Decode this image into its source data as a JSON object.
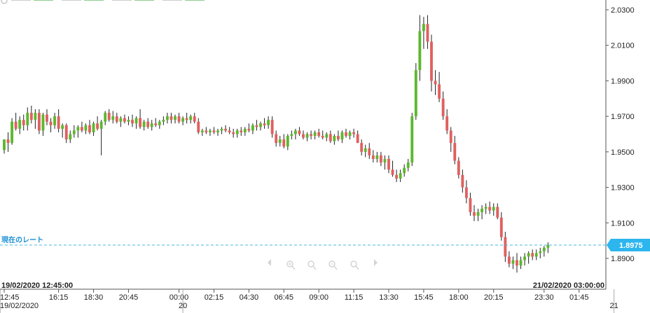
{
  "legend": {
    "items": [
      {
        "label": "",
        "value": ""
      },
      {
        "label": "",
        "value": ""
      },
      {
        "label": "",
        "value": ""
      },
      {
        "label": "",
        "value": ""
      }
    ]
  },
  "current_rate": {
    "label": "現在のレート",
    "value": "1.8975",
    "value_num": 1.8975
  },
  "range": {
    "start": "19/02/2020 12:45:00",
    "end": "21/02/2020 03:00:00"
  },
  "day_labels": [
    {
      "text": "19/02/2020",
      "x_index": 0
    },
    {
      "text": "20",
      "x_index": 46
    },
    {
      "text": "21",
      "x_index": 157
    }
  ],
  "nav_icons": [
    "arrow-left-icon",
    "zoom-in-icon",
    "zoom-reset-icon",
    "zoom-out-icon",
    "zoom-fit-icon",
    "arrow-right-icon"
  ],
  "colors": {
    "up": "#5cb82e",
    "down": "#e06060",
    "current_line": "#4ab8e0",
    "badge": "#2db6ee"
  },
  "chart_data": {
    "type": "candlestick",
    "interval_minutes": 15,
    "ylim": [
      1.88,
      2.035
    ],
    "yticks": [
      1.89,
      1.91,
      1.93,
      1.95,
      1.97,
      1.99,
      2.01,
      2.03
    ],
    "ytick_labels": [
      "1.8900",
      "1.9100",
      "1.9300",
      "1.9500",
      "1.9700",
      "1.9900",
      "2.0100",
      "2.0300"
    ],
    "xtick_labels": [
      {
        "text": "12:45",
        "index": 0
      },
      {
        "text": "16:15",
        "index": 14
      },
      {
        "text": "18:30",
        "index": 23
      },
      {
        "text": "20:45",
        "index": 32
      },
      {
        "text": "00:00",
        "index": 45
      },
      {
        "text": "02:15",
        "index": 54
      },
      {
        "text": "04:30",
        "index": 63
      },
      {
        "text": "06:45",
        "index": 72
      },
      {
        "text": "09:00",
        "index": 81
      },
      {
        "text": "11:15",
        "index": 90
      },
      {
        "text": "13:30",
        "index": 99
      },
      {
        "text": "15:45",
        "index": 108
      },
      {
        "text": "18:00",
        "index": 117
      },
      {
        "text": "20:15",
        "index": 126
      },
      {
        "text": "23:30",
        "index": 139
      },
      {
        "text": "01:45",
        "index": 148
      }
    ],
    "x_count": 155,
    "candles": [
      [
        1.951,
        1.957,
        1.949,
        1.957
      ],
      [
        1.957,
        1.961,
        1.95,
        1.955
      ],
      [
        1.955,
        1.969,
        1.954,
        1.967
      ],
      [
        1.967,
        1.972,
        1.962,
        1.963
      ],
      [
        1.963,
        1.97,
        1.96,
        1.968
      ],
      [
        1.968,
        1.971,
        1.962,
        1.965
      ],
      [
        1.965,
        1.975,
        1.962,
        1.972
      ],
      [
        1.972,
        1.976,
        1.966,
        1.968
      ],
      [
        1.968,
        1.974,
        1.963,
        1.972
      ],
      [
        1.972,
        1.974,
        1.96,
        1.962
      ],
      [
        1.962,
        1.972,
        1.959,
        1.971
      ],
      [
        1.971,
        1.974,
        1.965,
        1.967
      ],
      [
        1.967,
        1.969,
        1.961,
        1.965
      ],
      [
        1.965,
        1.972,
        1.963,
        1.97
      ],
      [
        1.97,
        1.974,
        1.961,
        1.963
      ],
      [
        1.963,
        1.966,
        1.958,
        1.965
      ],
      [
        1.965,
        1.966,
        1.955,
        1.957
      ],
      [
        1.957,
        1.962,
        1.955,
        1.96
      ],
      [
        1.96,
        1.965,
        1.958,
        1.962
      ],
      [
        1.962,
        1.965,
        1.958,
        1.964
      ],
      [
        1.964,
        1.967,
        1.961,
        1.962
      ],
      [
        1.962,
        1.966,
        1.96,
        1.965
      ],
      [
        1.965,
        1.968,
        1.96,
        1.961
      ],
      [
        1.961,
        1.967,
        1.959,
        1.966
      ],
      [
        1.966,
        1.97,
        1.962,
        1.963
      ],
      [
        1.963,
        1.968,
        1.948,
        1.967
      ],
      [
        1.967,
        1.973,
        1.965,
        1.972
      ],
      [
        1.972,
        1.974,
        1.967,
        1.968
      ],
      [
        1.968,
        1.973,
        1.966,
        1.97
      ],
      [
        1.97,
        1.972,
        1.966,
        1.967
      ],
      [
        1.967,
        1.97,
        1.964,
        1.969
      ],
      [
        1.969,
        1.971,
        1.966,
        1.967
      ],
      [
        1.967,
        1.97,
        1.965,
        1.968
      ],
      [
        1.968,
        1.971,
        1.964,
        1.966
      ],
      [
        1.966,
        1.97,
        1.963,
        1.969
      ],
      [
        1.969,
        1.974,
        1.963,
        1.964
      ],
      [
        1.964,
        1.968,
        1.962,
        1.967
      ],
      [
        1.967,
        1.969,
        1.963,
        1.964
      ],
      [
        1.964,
        1.968,
        1.962,
        1.966
      ],
      [
        1.966,
        1.969,
        1.964,
        1.965
      ],
      [
        1.965,
        1.968,
        1.963,
        1.967
      ],
      [
        1.967,
        1.97,
        1.965,
        1.968
      ],
      [
        1.968,
        1.972,
        1.966,
        1.97
      ],
      [
        1.97,
        1.972,
        1.966,
        1.968
      ],
      [
        1.968,
        1.971,
        1.966,
        1.97
      ],
      [
        1.97,
        1.972,
        1.966,
        1.967
      ],
      [
        1.967,
        1.97,
        1.965,
        1.969
      ],
      [
        1.969,
        1.972,
        1.966,
        1.968
      ],
      [
        1.968,
        1.971,
        1.966,
        1.97
      ],
      [
        1.97,
        1.972,
        1.966,
        1.967
      ],
      [
        1.967,
        1.969,
        1.96,
        1.961
      ],
      [
        1.961,
        1.963,
        1.959,
        1.962
      ],
      [
        1.962,
        1.964,
        1.96,
        1.961
      ],
      [
        1.961,
        1.963,
        1.959,
        1.962
      ],
      [
        1.962,
        1.964,
        1.96,
        1.961
      ],
      [
        1.961,
        1.963,
        1.959,
        1.962
      ],
      [
        1.962,
        1.964,
        1.96,
        1.963
      ],
      [
        1.963,
        1.965,
        1.961,
        1.962
      ],
      [
        1.962,
        1.964,
        1.96,
        1.961
      ],
      [
        1.961,
        1.963,
        1.958,
        1.96
      ],
      [
        1.96,
        1.963,
        1.958,
        1.962
      ],
      [
        1.962,
        1.964,
        1.959,
        1.961
      ],
      [
        1.961,
        1.964,
        1.959,
        1.963
      ],
      [
        1.963,
        1.966,
        1.961,
        1.962
      ],
      [
        1.962,
        1.966,
        1.96,
        1.965
      ],
      [
        1.965,
        1.968,
        1.962,
        1.964
      ],
      [
        1.964,
        1.967,
        1.962,
        1.966
      ],
      [
        1.966,
        1.969,
        1.963,
        1.965
      ],
      [
        1.965,
        1.97,
        1.963,
        1.968
      ],
      [
        1.968,
        1.97,
        1.958,
        1.96
      ],
      [
        1.96,
        1.962,
        1.953,
        1.955
      ],
      [
        1.955,
        1.959,
        1.953,
        1.957
      ],
      [
        1.957,
        1.96,
        1.952,
        1.953
      ],
      [
        1.953,
        1.96,
        1.951,
        1.959
      ],
      [
        1.959,
        1.962,
        1.957,
        1.96
      ],
      [
        1.96,
        1.963,
        1.957,
        1.962
      ],
      [
        1.962,
        1.964,
        1.959,
        1.96
      ],
      [
        1.96,
        1.962,
        1.957,
        1.958
      ],
      [
        1.958,
        1.961,
        1.956,
        1.96
      ],
      [
        1.96,
        1.962,
        1.957,
        1.959
      ],
      [
        1.959,
        1.962,
        1.957,
        1.961
      ],
      [
        1.961,
        1.963,
        1.958,
        1.959
      ],
      [
        1.959,
        1.962,
        1.957,
        1.958
      ],
      [
        1.958,
        1.961,
        1.956,
        1.96
      ],
      [
        1.96,
        1.962,
        1.955,
        1.956
      ],
      [
        1.956,
        1.96,
        1.954,
        1.959
      ],
      [
        1.959,
        1.962,
        1.956,
        1.957
      ],
      [
        1.957,
        1.962,
        1.955,
        1.961
      ],
      [
        1.961,
        1.963,
        1.958,
        1.959
      ],
      [
        1.959,
        1.962,
        1.957,
        1.961
      ],
      [
        1.961,
        1.963,
        1.958,
        1.96
      ],
      [
        1.96,
        1.962,
        1.955,
        1.955
      ],
      [
        1.955,
        1.957,
        1.948,
        1.95
      ],
      [
        1.95,
        1.954,
        1.947,
        1.952
      ],
      [
        1.952,
        1.955,
        1.946,
        1.948
      ],
      [
        1.948,
        1.951,
        1.944,
        1.946
      ],
      [
        1.946,
        1.95,
        1.944,
        1.948
      ],
      [
        1.948,
        1.95,
        1.942,
        1.944
      ],
      [
        1.944,
        1.948,
        1.94,
        1.946
      ],
      [
        1.946,
        1.948,
        1.938,
        1.94
      ],
      [
        1.94,
        1.945,
        1.936,
        1.937
      ],
      [
        1.937,
        1.94,
        1.933,
        1.935
      ],
      [
        1.935,
        1.94,
        1.933,
        1.938
      ],
      [
        1.938,
        1.943,
        1.936,
        1.941
      ],
      [
        1.941,
        1.946,
        1.939,
        1.944
      ],
      [
        1.944,
        1.972,
        1.942,
        1.97
      ],
      [
        1.97,
        2.0,
        1.968,
        1.996
      ],
      [
        1.996,
        2.027,
        1.99,
        2.018
      ],
      [
        2.018,
        2.026,
        2.008,
        2.022
      ],
      [
        2.022,
        2.027,
        2.008,
        2.012
      ],
      [
        2.012,
        2.016,
        1.984,
        1.99
      ],
      [
        1.99,
        1.996,
        1.982,
        1.988
      ],
      [
        1.988,
        1.995,
        1.978,
        1.98
      ],
      [
        1.98,
        1.984,
        1.968,
        1.97
      ],
      [
        1.97,
        1.974,
        1.96,
        1.962
      ],
      [
        1.962,
        1.964,
        1.95,
        1.955
      ],
      [
        1.955,
        1.959,
        1.943,
        1.945
      ],
      [
        1.945,
        1.947,
        1.935,
        1.937
      ],
      [
        1.937,
        1.94,
        1.927,
        1.93
      ],
      [
        1.93,
        1.934,
        1.921,
        1.924
      ],
      [
        1.924,
        1.927,
        1.914,
        1.916
      ],
      [
        1.916,
        1.92,
        1.911,
        1.914
      ],
      [
        1.914,
        1.918,
        1.911,
        1.916
      ],
      [
        1.916,
        1.92,
        1.912,
        1.918
      ],
      [
        1.918,
        1.921,
        1.915,
        1.919
      ],
      [
        1.919,
        1.922,
        1.915,
        1.917
      ],
      [
        1.917,
        1.921,
        1.914,
        1.919
      ],
      [
        1.919,
        1.921,
        1.912,
        1.913
      ],
      [
        1.913,
        1.916,
        1.9,
        1.902
      ],
      [
        1.902,
        1.905,
        1.888,
        1.891
      ],
      [
        1.891,
        1.894,
        1.885,
        1.887
      ],
      [
        1.887,
        1.891,
        1.884,
        1.889
      ],
      [
        1.889,
        1.893,
        1.882,
        1.886
      ],
      [
        1.886,
        1.891,
        1.884,
        1.889
      ],
      [
        1.889,
        1.893,
        1.886,
        1.891
      ],
      [
        1.891,
        1.894,
        1.887,
        1.893
      ],
      [
        1.893,
        1.895,
        1.889,
        1.891
      ],
      [
        1.891,
        1.895,
        1.889,
        1.893
      ],
      [
        1.893,
        1.896,
        1.89,
        1.894
      ],
      [
        1.894,
        1.897,
        1.891,
        1.896
      ],
      [
        1.896,
        1.899,
        1.893,
        1.8975
      ]
    ]
  }
}
